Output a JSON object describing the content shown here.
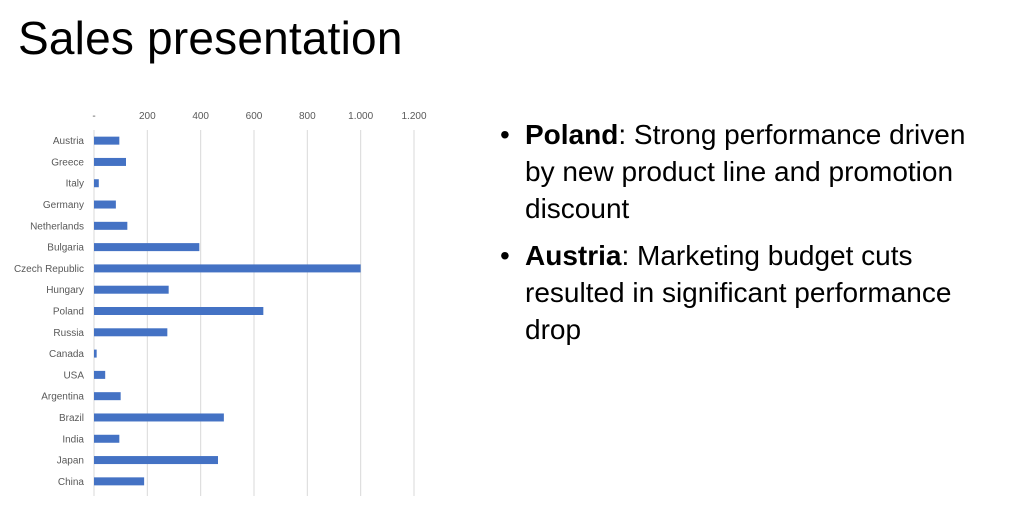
{
  "slide": {
    "title": "Sales presentation"
  },
  "bullets": [
    {
      "bold": "Poland",
      "text": ": Strong performance driven by new product line and promotion discount"
    },
    {
      "bold": "Austria",
      "text": ": Marketing budget cuts resulted in significant performance drop"
    }
  ],
  "colors": {
    "bar": "#4472C4",
    "grid": "#D9D9D9",
    "axis_text": "#595959"
  },
  "chart_data": {
    "type": "bar",
    "orientation": "horizontal",
    "categories": [
      "Austria",
      "Greece",
      "Italy",
      "Germany",
      "Netherlands",
      "Bulgaria",
      "Czech Republic",
      "Hungary",
      "Poland",
      "Russia",
      "Canada",
      "USA",
      "Argentina",
      "Brazil",
      "India",
      "Japan",
      "China"
    ],
    "values": [
      95,
      120,
      18,
      82,
      125,
      395,
      1000,
      280,
      635,
      275,
      10,
      42,
      100,
      487,
      95,
      465,
      188
    ],
    "xlim": [
      0,
      1200
    ],
    "xticks": [
      0,
      200,
      400,
      600,
      800,
      1000,
      1200
    ],
    "xtick_labels": [
      "-",
      "200",
      "400",
      "600",
      "800",
      "1.000",
      "1.200"
    ],
    "axis_position": "top",
    "grid": true,
    "legend": "none"
  }
}
